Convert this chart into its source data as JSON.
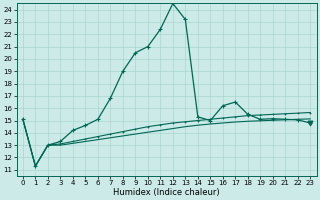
{
  "xlabel": "Humidex (Indice chaleur)",
  "xlim": [
    -0.5,
    23.5
  ],
  "ylim": [
    10.5,
    24.5
  ],
  "yticks": [
    11,
    12,
    13,
    14,
    15,
    16,
    17,
    18,
    19,
    20,
    21,
    22,
    23,
    24
  ],
  "xticks": [
    0,
    1,
    2,
    3,
    4,
    5,
    6,
    7,
    8,
    9,
    10,
    11,
    12,
    13,
    14,
    15,
    16,
    17,
    18,
    19,
    20,
    21,
    22,
    23
  ],
  "background_color": "#cceae7",
  "grid_color": "#aad6d0",
  "line_color": "#006655",
  "line1_y": [
    15.1,
    11.3,
    13.0,
    13.3,
    14.2,
    14.6,
    15.1,
    16.8,
    19.0,
    20.5,
    21.0,
    22.4,
    24.5,
    23.2,
    15.3,
    15.0,
    16.2,
    16.5,
    15.5,
    15.1,
    15.15,
    15.1,
    15.05,
    14.8
  ],
  "line2_y": [
    15.1,
    11.3,
    13.0,
    13.1,
    13.3,
    13.5,
    13.7,
    13.9,
    14.1,
    14.3,
    14.5,
    14.65,
    14.8,
    14.9,
    15.0,
    15.1,
    15.2,
    15.3,
    15.4,
    15.45,
    15.5,
    15.55,
    15.6,
    15.65
  ],
  "line3_y": [
    15.1,
    11.3,
    13.0,
    13.0,
    13.15,
    13.3,
    13.45,
    13.6,
    13.75,
    13.9,
    14.05,
    14.2,
    14.35,
    14.5,
    14.62,
    14.72,
    14.8,
    14.88,
    14.94,
    14.98,
    15.02,
    15.06,
    15.1,
    15.13
  ]
}
